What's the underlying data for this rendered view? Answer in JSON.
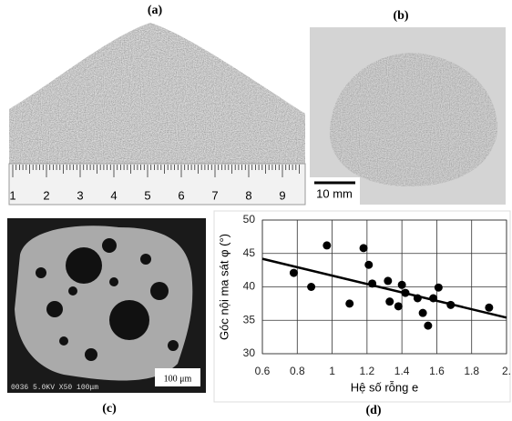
{
  "panels": {
    "a": "(a)",
    "b": "(b)",
    "c": "(c)",
    "d": "(d)"
  },
  "ruler_labels": [
    1,
    2,
    3,
    4,
    5,
    6,
    7,
    8,
    9
  ],
  "scale_bar_b": "10 mm",
  "scale_bar_c": "100 μm",
  "sem_caption": "0036  5.0KV   X50  100μm",
  "chart_data": {
    "type": "scatter",
    "xlabel": "Hệ số rỗng e",
    "ylabel": "Góc nội ma sát φ (°)",
    "x": [
      0.78,
      0.88,
      0.97,
      1.1,
      1.18,
      1.21,
      1.23,
      1.32,
      1.33,
      1.38,
      1.4,
      1.42,
      1.49,
      1.52,
      1.55,
      1.58,
      1.61,
      1.68,
      1.9
    ],
    "values": [
      42.1,
      40.0,
      46.2,
      37.5,
      45.8,
      43.3,
      40.5,
      40.9,
      37.8,
      37.1,
      40.3,
      39.1,
      38.3,
      36.1,
      34.2,
      38.3,
      39.9,
      37.3,
      36.9
    ],
    "color": "#000000",
    "trendline": {
      "x": [
        0.6,
        2.0
      ],
      "values": [
        44.2,
        35.4
      ]
    },
    "xlim": [
      0.6,
      2.0
    ],
    "ylim": [
      30,
      50
    ],
    "xticks": [
      0.6,
      0.8,
      1,
      1.2,
      1.4,
      1.6,
      1.8,
      {
        "value": 2,
        "label": "2."
      }
    ],
    "yticks": [
      30,
      35,
      40,
      45,
      50
    ],
    "grid": true
  }
}
